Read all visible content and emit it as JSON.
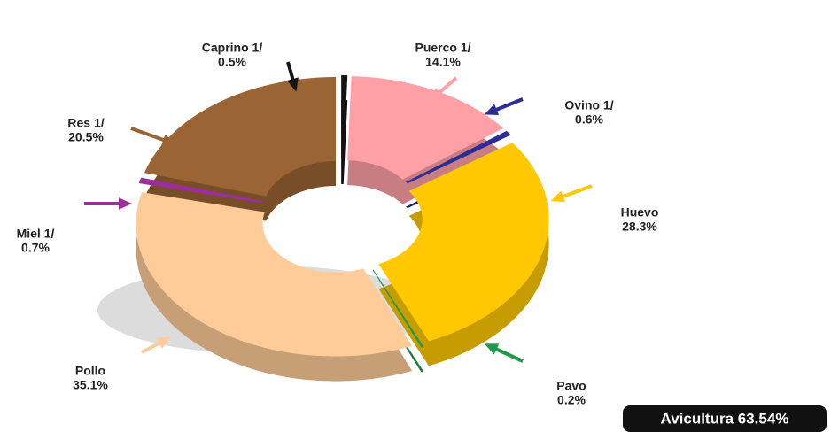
{
  "chart_data": {
    "type": "donut",
    "categories": [
      "Caprino 1/",
      "Puerco 1/",
      "Ovino 1/",
      "Huevo",
      "Pavo",
      "Pollo",
      "Miel 1/",
      "Res 1/"
    ],
    "values": [
      0.5,
      14.1,
      0.6,
      28.3,
      0.2,
      35.1,
      0.7,
      20.5
    ],
    "value_labels": [
      "0.5%",
      "14.1%",
      "0.6%",
      "28.3%",
      "0.2%",
      "35.1%",
      "0.7%",
      "20.5%"
    ],
    "colors": [
      "#141414",
      "#ffa0a6",
      "#2c2c94",
      "#ffc800",
      "#1f9a4a",
      "#ffcc99",
      "#9a2f9a",
      "#9a6434"
    ],
    "annotation": "Avicultura 63.54%"
  }
}
